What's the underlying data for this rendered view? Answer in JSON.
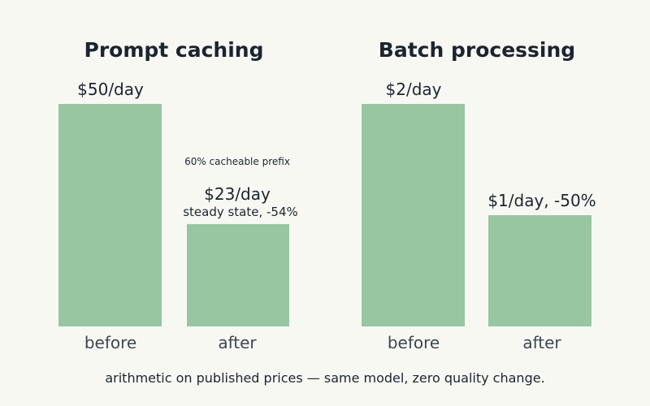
{
  "chart_data": [
    {
      "type": "bar",
      "title": "Prompt caching",
      "categories": [
        "before",
        "after"
      ],
      "values": [
        50,
        23
      ],
      "unit": "$/day",
      "value_labels": [
        "$50/day",
        "$23/day"
      ],
      "value_sublabels": [
        "",
        "steady state, -54%"
      ],
      "annotation": "60% cacheable prefix",
      "bar_color": "#98c6a1",
      "xlabel": "",
      "ylabel": "",
      "grid": false
    },
    {
      "type": "bar",
      "title": "Batch processing",
      "categories": [
        "before",
        "after"
      ],
      "values": [
        2,
        1
      ],
      "unit": "$/day",
      "value_labels": [
        "$2/day",
        "$1/day, -50%"
      ],
      "value_sublabels": [
        "",
        ""
      ],
      "annotation": "",
      "bar_color": "#98c6a1",
      "xlabel": "",
      "ylabel": "",
      "grid": false
    }
  ],
  "footer": "arithmetic on published prices — same model, zero quality change."
}
